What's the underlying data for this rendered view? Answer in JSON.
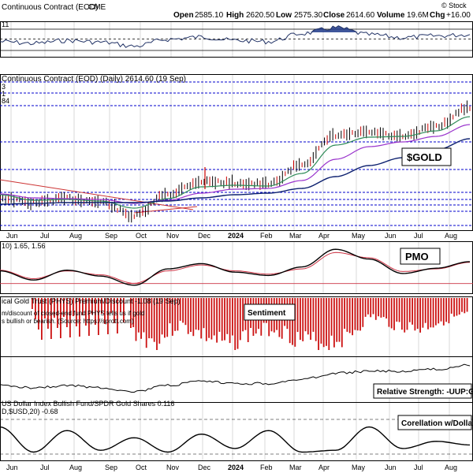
{
  "header": {
    "title": "Continuous Contract (EOD)",
    "exchange": "CME",
    "brand": "© Stock",
    "ohlc": {
      "open_label": "Open",
      "open": "2585.10",
      "high_label": "High",
      "high": "2620.50",
      "low_label": "Low",
      "low": "2575.30",
      "close_label": "Close",
      "close": "2614.60",
      "volume_label": "Volume",
      "volume": "19.6M",
      "chg_label": "Chg",
      "chg": "+16.00"
    }
  },
  "colors": {
    "price_up": "#000000",
    "price_down": "#cc0000",
    "ma_short": "#2e8b57",
    "ma_mid": "#9932cc",
    "ma_long": "#0b1f6e",
    "pmo": "#000000",
    "pmo_signal": "#cc3344",
    "premium_bars": "#cc1111",
    "rsi_fill": "#1e3a8a",
    "grid_dash": "#0000cc"
  },
  "chart_data": [
    {
      "type": "line",
      "panel": "rsi",
      "title": "11",
      "ylim": [
        0,
        100
      ],
      "x": [
        "Jun",
        "Jul",
        "Aug",
        "Sep",
        "Oct",
        "Nov",
        "Dec",
        "2024",
        "Feb",
        "Mar",
        "Apr",
        "May",
        "Jun",
        "Jul",
        "Aug"
      ],
      "series": [
        {
          "values": [
            48,
            45,
            50,
            47,
            40,
            52,
            56,
            50,
            48,
            62,
            72,
            60,
            55,
            58,
            60
          ]
        }
      ]
    },
    {
      "type": "line",
      "panel": "price",
      "title": "Continuous Contract (EOD) (Daily) 2614.60 (19 Sep)",
      "legend_fragments": [
        "3",
        "1",
        "84"
      ],
      "x": [
        "Jun",
        "Jul",
        "Aug",
        "Sep",
        "Oct",
        "Nov",
        "Dec",
        "2024",
        "Feb",
        "Mar",
        "Apr",
        "May",
        "Jun",
        "Jul",
        "Aug"
      ],
      "series": [
        {
          "values": [
            1965,
            1935,
            1960,
            1940,
            1850,
            1990,
            2070,
            2060,
            2050,
            2180,
            2360,
            2380,
            2350,
            2420,
            2540
          ]
        },
        {
          "values": [
            1985,
            1950,
            1955,
            1945,
            1900,
            1960,
            2035,
            2045,
            2040,
            2120,
            2300,
            2350,
            2355,
            2390,
            2480
          ]
        },
        {
          "values": [
            1990,
            1965,
            1960,
            1955,
            1930,
            1950,
            1995,
            2020,
            2025,
            2075,
            2210,
            2290,
            2320,
            2355,
            2430
          ]
        },
        {
          "values": [
            1925,
            1930,
            1935,
            1935,
            1935,
            1945,
            1965,
            1985,
            1995,
            2025,
            2100,
            2170,
            2220,
            2270,
            2340
          ]
        }
      ],
      "annotation": "$GOLD"
    },
    {
      "type": "line",
      "panel": "pmo",
      "title": "10) 1.65, 1.56",
      "annotation": "PMO",
      "x": [
        "Jun",
        "Jul",
        "Aug",
        "Sep",
        "Oct",
        "Nov",
        "Dec",
        "2024",
        "Feb",
        "Mar",
        "Apr",
        "May",
        "Jun",
        "Jul",
        "Aug"
      ],
      "series": [
        {
          "values": [
            0.2,
            -1.2,
            0.3,
            -0.6,
            -2.0,
            0.5,
            1.3,
            0.0,
            -0.5,
            0.8,
            3.5,
            2.0,
            -0.2,
            0.6,
            1.6
          ]
        },
        {
          "values": [
            0.3,
            -1.0,
            0.2,
            -0.4,
            -1.7,
            0.2,
            1.1,
            0.2,
            -0.3,
            0.5,
            3.0,
            2.2,
            0.1,
            0.5,
            1.5
          ]
        }
      ]
    },
    {
      "type": "bar",
      "panel": "premium_discount",
      "title": "ical Gold Trust (PHYS) Premium/Discount -1.08 (19 Sep)",
      "annotation": "Sentiment",
      "note": [
        "m/discount of closed-end fund PHYS tells us if gold",
        "s bullish or bearish.  (Source: https://sprott.com)"
      ],
      "categories": [
        "Jun",
        "Jul",
        "Aug",
        "Sep",
        "Oct",
        "Nov",
        "Dec",
        "2024",
        "Feb",
        "Mar",
        "Apr",
        "May",
        "Jun",
        "Jul",
        "Aug"
      ],
      "values": [
        -2.2,
        -3.0,
        -1.8,
        -2.5,
        -3.2,
        -2.4,
        -2.0,
        -2.8,
        -3.1,
        -2.6,
        -1.2,
        -1.8,
        -2.1,
        -1.5,
        -1.1
      ]
    },
    {
      "type": "line",
      "panel": "relative_strength",
      "annotation": "Relative Strength: -UUP:GL",
      "x": [
        "Jun",
        "Jul",
        "Aug",
        "Sep",
        "Oct",
        "Nov",
        "Dec",
        "2024",
        "Feb",
        "Mar",
        "Apr",
        "May",
        "Jun",
        "Jul",
        "Aug"
      ],
      "series": [
        {
          "values": [
            10,
            9,
            10,
            9,
            7,
            10,
            12,
            11,
            11,
            13,
            16,
            17,
            17,
            18,
            20
          ]
        }
      ]
    },
    {
      "type": "line",
      "panel": "correlation",
      "title": "D,$USD,20) -0.68",
      "header_prefix": "US Dollar Index Bullish Fund/SPDR Gold Shares 0.116",
      "annotation": "Corellation w/Dollar",
      "x": [
        "Jun",
        "Jul",
        "Aug",
        "Sep",
        "Oct",
        "Nov",
        "Dec",
        "2024",
        "Feb",
        "Mar",
        "Apr",
        "May",
        "Jun",
        "Jul",
        "Aug"
      ],
      "series": [
        {
          "values": [
            -0.2,
            -0.9,
            -0.3,
            -0.85,
            -0.5,
            -0.9,
            -0.4,
            -0.8,
            -0.3,
            -0.9,
            -0.85,
            -0.2,
            -0.8,
            -0.6,
            -0.7
          ]
        }
      ]
    }
  ],
  "x_axis_labels": [
    "Jun",
    "Jul",
    "Aug",
    "Sep",
    "Oct",
    "Nov",
    "Dec",
    "2024",
    "Feb",
    "Mar",
    "Apr",
    "May",
    "Jun",
    "Jul",
    "Aug"
  ]
}
